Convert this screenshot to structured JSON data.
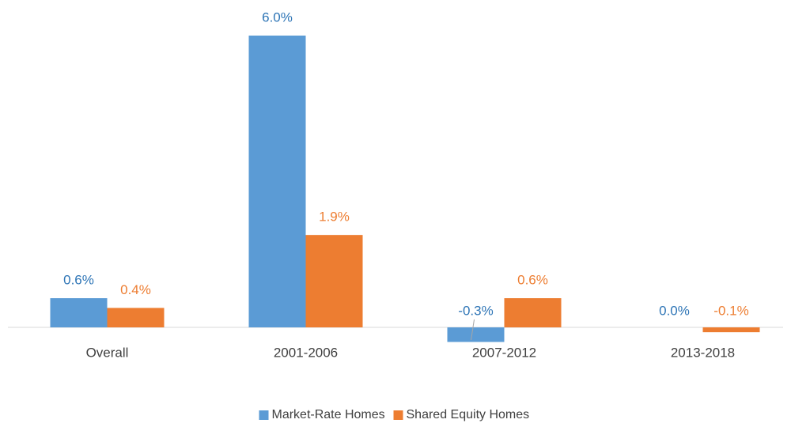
{
  "chart_data": {
    "type": "bar",
    "categories": [
      "Overall",
      "2001-2006",
      "2007-2012",
      "2013-2018"
    ],
    "series": [
      {
        "name": "Market-Rate Homes",
        "color": "#5b9bd5",
        "values": [
          0.6,
          6.0,
          -0.3,
          0.0
        ],
        "value_labels": [
          "0.6%",
          "6.0%",
          "-0.3%",
          "0.0%"
        ]
      },
      {
        "name": "Shared Equity Homes",
        "color": "#ed7d31",
        "values": [
          0.4,
          1.9,
          0.6,
          -0.1
        ],
        "value_labels": [
          "0.4%",
          "1.9%",
          "0.6%",
          "-0.1%"
        ]
      }
    ],
    "ylim": [
      -0.5,
      6.0
    ],
    "legend": "bottom"
  }
}
